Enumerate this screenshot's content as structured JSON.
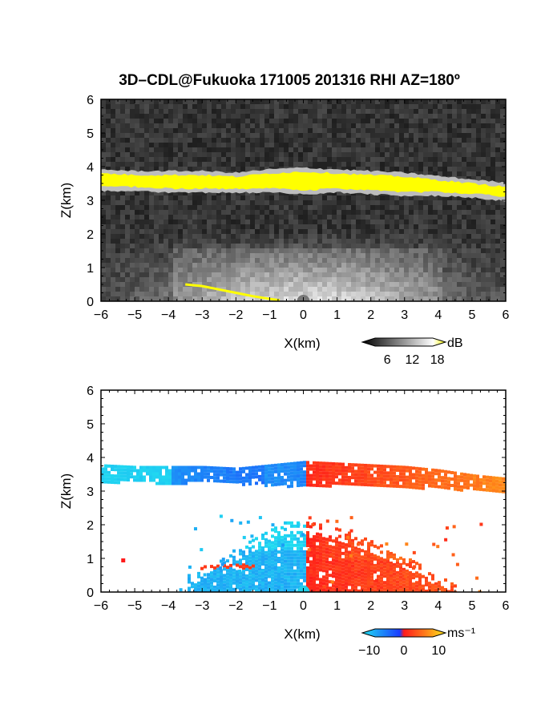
{
  "title": "3D–CDL@Fukuoka 171005 201316 RHI AZ=180º",
  "chart_data": [
    {
      "type": "heatmap",
      "name": "reflectivity",
      "xlabel": "X(km)",
      "ylabel": "Z(km)",
      "xlim": [
        -6,
        6
      ],
      "ylim": [
        0,
        6
      ],
      "xticks": [
        "−6",
        "−5",
        "−4",
        "−3",
        "−2",
        "−1",
        "0",
        "1",
        "2",
        "3",
        "4",
        "5",
        "6"
      ],
      "yticks": [
        "0",
        "1",
        "2",
        "3",
        "4",
        "5",
        "6"
      ],
      "cloud_layer": {
        "x": [
          -6,
          -5,
          -4,
          -3,
          -2,
          -1,
          0,
          1,
          2,
          3,
          4,
          5,
          6
        ],
        "top": [
          3.8,
          3.75,
          3.75,
          3.75,
          3.7,
          3.8,
          3.85,
          3.8,
          3.75,
          3.7,
          3.6,
          3.5,
          3.4
        ],
        "bottom": [
          3.4,
          3.4,
          3.35,
          3.35,
          3.35,
          3.35,
          3.3,
          3.35,
          3.3,
          3.25,
          3.25,
          3.2,
          3.1
        ]
      },
      "surface_echo": {
        "x": [
          -3.5,
          -3,
          -2.5,
          -2,
          -1.5,
          -1,
          -0.7
        ],
        "z": [
          0.5,
          0.45,
          0.35,
          0.25,
          0.15,
          0.07,
          0.03
        ]
      },
      "colorbar": {
        "unit": "dB",
        "ticks": [
          "6",
          "12",
          "18"
        ],
        "min": 0,
        "max": 20
      }
    },
    {
      "type": "heatmap",
      "name": "doppler_velocity",
      "xlabel": "X(km)",
      "ylabel": "Z(km)",
      "xlim": [
        -6,
        6
      ],
      "ylim": [
        0,
        6
      ],
      "xticks": [
        "−6",
        "−5",
        "−4",
        "−3",
        "−2",
        "−1",
        "0",
        "1",
        "2",
        "3",
        "4",
        "5",
        "6"
      ],
      "yticks": [
        "0",
        "1",
        "2",
        "3",
        "4",
        "5",
        "6"
      ],
      "cloud_layer": {
        "x": [
          -6,
          -5,
          -4,
          -3,
          -2,
          -1,
          0,
          1,
          2,
          3,
          4,
          5,
          6
        ],
        "top": [
          3.8,
          3.75,
          3.75,
          3.75,
          3.7,
          3.8,
          3.9,
          3.85,
          3.8,
          3.75,
          3.65,
          3.5,
          3.4
        ],
        "bottom": [
          3.3,
          3.3,
          3.25,
          3.3,
          3.25,
          3.2,
          3.15,
          3.2,
          3.2,
          3.15,
          3.1,
          3.05,
          3.0
        ],
        "velocity_left": -8,
        "velocity_right": 6
      },
      "lower_echo": {
        "x_left": -3.5,
        "x_right": 4.5,
        "top": 2.1,
        "velocity_left": -9,
        "velocity_right": 5
      },
      "colorbar": {
        "unit": "ms⁻¹",
        "ticks": [
          "−10",
          "0",
          "10"
        ],
        "min": -12,
        "max": 12
      }
    }
  ],
  "colors": {
    "axes": "#000000",
    "cloud_reflectivity": "#ffff00",
    "velocity_negative": "#1a3cff",
    "velocity_positive": "#ff3a1a",
    "velocity_far_negative": "#20e0f0",
    "velocity_far_positive": "#ffd21a"
  }
}
